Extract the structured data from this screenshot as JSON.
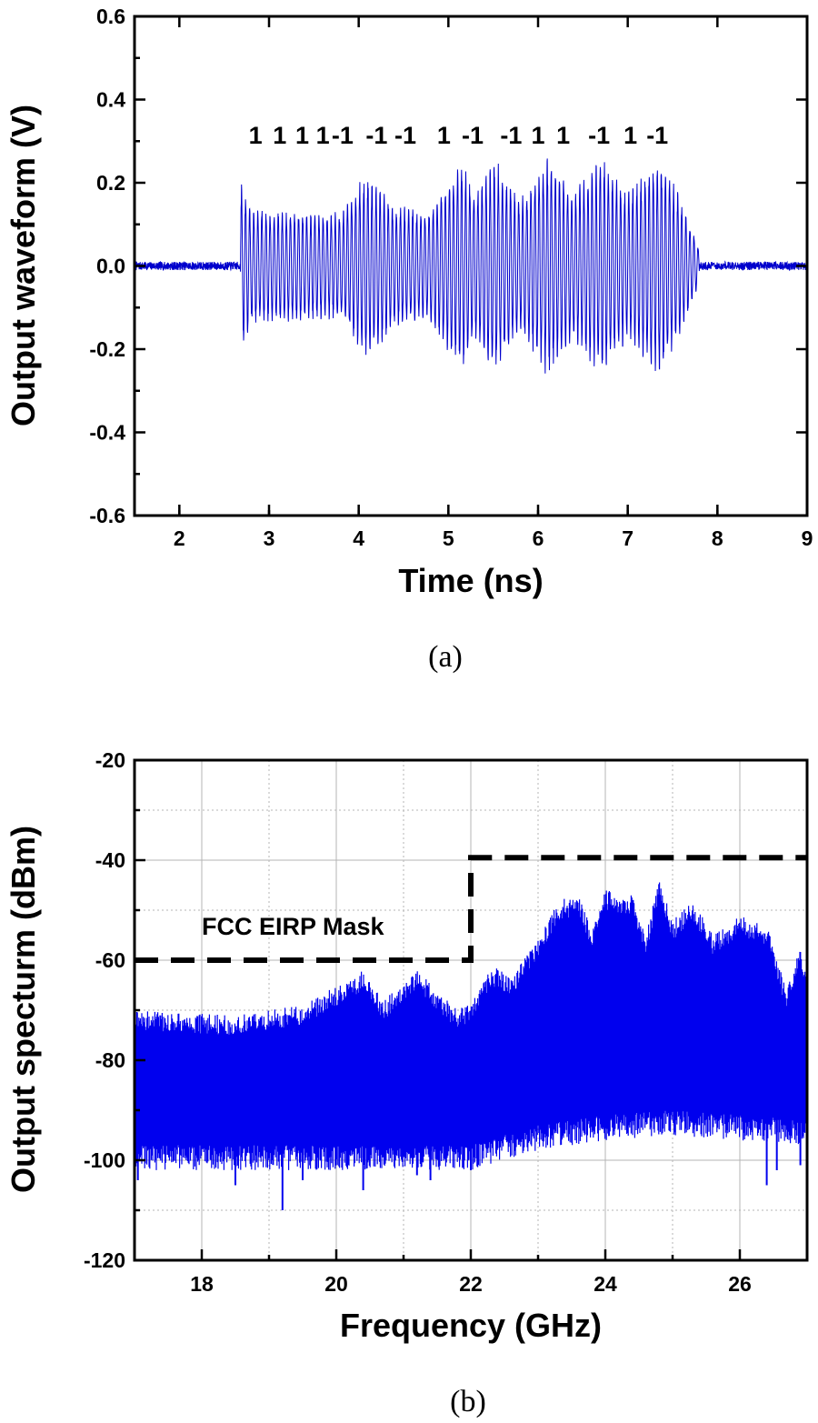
{
  "chart_data": [
    {
      "type": "line",
      "panel": "a",
      "caption": "(a)",
      "xlabel": "Time (ns)",
      "ylabel": "Output waveform (V)",
      "xlim": [
        1.5,
        9
      ],
      "ylim": [
        -0.6,
        0.6
      ],
      "xticks": [
        2,
        3,
        4,
        5,
        6,
        7,
        8,
        9
      ],
      "yticks": [
        -0.6,
        -0.4,
        -0.2,
        0.0,
        0.2,
        0.4,
        0.6
      ],
      "ytick_labels": [
        "-0.6",
        "-0.4",
        "-0.2",
        "0.0",
        "0.2",
        "0.4",
        "0.6"
      ],
      "grid": false,
      "series_color": "#0000cc",
      "bit_labels": [
        "1",
        "1",
        "1",
        "1",
        "-1",
        "-1",
        "-1",
        "1",
        "-1",
        "-1",
        "1",
        "1",
        "-1",
        "1",
        "-1"
      ],
      "bit_label_times": [
        2.85,
        3.12,
        3.37,
        3.6,
        3.82,
        4.2,
        4.52,
        4.95,
        5.27,
        5.7,
        6.0,
        6.28,
        6.68,
        7.03,
        7.33
      ],
      "series": [
        {
          "signal_start": 2.68,
          "signal_end": 7.8,
          "carrier_cycles_per_ns": 22,
          "noise_floor_amplitude": 0.01,
          "envelope": [
            {
              "t": 2.7,
              "amp": 0.2
            },
            {
              "t": 2.8,
              "amp": 0.14
            },
            {
              "t": 3.0,
              "amp": 0.14
            },
            {
              "t": 3.5,
              "amp": 0.13
            },
            {
              "t": 3.8,
              "amp": 0.13
            },
            {
              "t": 4.08,
              "amp": 0.23
            },
            {
              "t": 4.4,
              "amp": 0.15
            },
            {
              "t": 4.75,
              "amp": 0.13
            },
            {
              "t": 5.15,
              "amp": 0.26
            },
            {
              "t": 5.3,
              "amp": 0.18
            },
            {
              "t": 5.5,
              "amp": 0.27
            },
            {
              "t": 5.8,
              "amp": 0.16
            },
            {
              "t": 6.1,
              "amp": 0.27
            },
            {
              "t": 6.4,
              "amp": 0.18
            },
            {
              "t": 6.72,
              "amp": 0.27
            },
            {
              "t": 7.0,
              "amp": 0.18
            },
            {
              "t": 7.35,
              "amp": 0.27
            },
            {
              "t": 7.6,
              "amp": 0.16
            },
            {
              "t": 7.8,
              "amp": 0.04
            }
          ]
        }
      ]
    },
    {
      "type": "line",
      "panel": "b",
      "caption": "(b)",
      "xlabel": "Frequency (GHz)",
      "ylabel": "Output specturm (dBm)",
      "xlim": [
        17,
        27
      ],
      "ylim": [
        -120,
        -20
      ],
      "xticks": [
        18,
        20,
        22,
        24,
        26
      ],
      "yticks": [
        -120,
        -100,
        -80,
        -60,
        -40,
        -20
      ],
      "grid": true,
      "series_color": "#0000ee",
      "series": [
        {
          "upper_envelope": [
            {
              "f": 17.0,
              "dbm": -70
            },
            {
              "f": 18.5,
              "dbm": -71
            },
            {
              "f": 19.5,
              "dbm": -69
            },
            {
              "f": 20.4,
              "dbm": -62
            },
            {
              "f": 20.7,
              "dbm": -68
            },
            {
              "f": 21.2,
              "dbm": -62
            },
            {
              "f": 21.5,
              "dbm": -66
            },
            {
              "f": 21.8,
              "dbm": -70
            },
            {
              "f": 22.0,
              "dbm": -68
            },
            {
              "f": 22.3,
              "dbm": -61
            },
            {
              "f": 22.6,
              "dbm": -63
            },
            {
              "f": 23.0,
              "dbm": -56
            },
            {
              "f": 23.3,
              "dbm": -48
            },
            {
              "f": 23.6,
              "dbm": -47
            },
            {
              "f": 23.8,
              "dbm": -54
            },
            {
              "f": 24.0,
              "dbm": -46
            },
            {
              "f": 24.4,
              "dbm": -47
            },
            {
              "f": 24.6,
              "dbm": -55
            },
            {
              "f": 24.8,
              "dbm": -44
            },
            {
              "f": 25.0,
              "dbm": -52
            },
            {
              "f": 25.3,
              "dbm": -48
            },
            {
              "f": 25.6,
              "dbm": -55
            },
            {
              "f": 26.0,
              "dbm": -51
            },
            {
              "f": 26.4,
              "dbm": -53
            },
            {
              "f": 26.7,
              "dbm": -66
            },
            {
              "f": 26.9,
              "dbm": -57
            },
            {
              "f": 27.0,
              "dbm": -64
            }
          ],
          "lower_envelope": [
            {
              "f": 17.0,
              "dbm": -97
            },
            {
              "f": 20.0,
              "dbm": -97
            },
            {
              "f": 22.0,
              "dbm": -97
            },
            {
              "f": 23.0,
              "dbm": -93
            },
            {
              "f": 24.0,
              "dbm": -91
            },
            {
              "f": 25.0,
              "dbm": -90
            },
            {
              "f": 27.0,
              "dbm": -92
            }
          ],
          "deep_spikes": [
            {
              "f": 17.05,
              "dbm": -104
            },
            {
              "f": 18.5,
              "dbm": -105
            },
            {
              "f": 19.2,
              "dbm": -110
            },
            {
              "f": 19.5,
              "dbm": -104
            },
            {
              "f": 20.4,
              "dbm": -106
            },
            {
              "f": 21.2,
              "dbm": -103
            },
            {
              "f": 21.4,
              "dbm": -104
            },
            {
              "f": 22.0,
              "dbm": -102
            },
            {
              "f": 26.4,
              "dbm": -105
            },
            {
              "f": 26.55,
              "dbm": -102
            },
            {
              "f": 26.9,
              "dbm": -101
            }
          ]
        }
      ],
      "annotations": [
        {
          "text": "FCC EIRP Mask",
          "type": "dashed-step-line",
          "points": [
            {
              "f": 17.0,
              "dbm": -60
            },
            {
              "f": 22.0,
              "dbm": -60
            },
            {
              "f": 22.0,
              "dbm": -39.5
            },
            {
              "f": 27.0,
              "dbm": -39.5
            }
          ]
        }
      ]
    }
  ]
}
